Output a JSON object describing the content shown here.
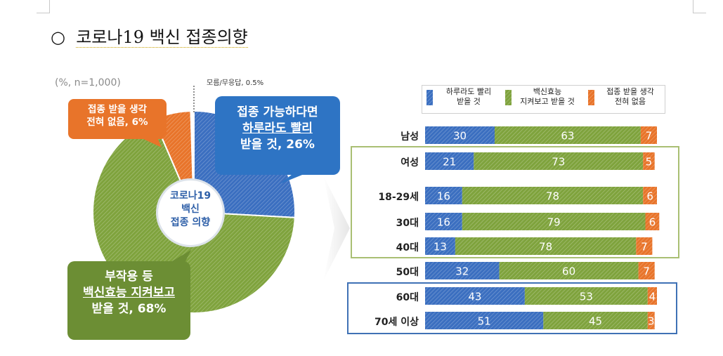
{
  "page": {
    "bullet": "○",
    "title": "코로나19 백신 접종의향"
  },
  "pie": {
    "note": "(%, n=1,000)",
    "center_lines": [
      "코로나19",
      "백신",
      "접종 의향"
    ],
    "small_label": "모름/무응답, 0.5%",
    "callout_blue": [
      "접종 가능하다면",
      "하루라도 빨리",
      "받을 것, 26%"
    ],
    "callout_orange": [
      "접종 받을 생각",
      "전혀 없음, 6%"
    ],
    "callout_green": [
      "부작용 등",
      "백신효능 지켜보고",
      "받을 것, 68%"
    ]
  },
  "chart_data": [
    {
      "type": "pie",
      "categories": [
        "하루라도 빨리 받을 것",
        "백신효능 지켜보고 받을 것",
        "접종 받을 생각 전혀 없음",
        "모름/무응답"
      ],
      "values": [
        26,
        68,
        6,
        0.5
      ],
      "colors": [
        "#3b6fc0",
        "#7fa33d",
        "#e8742a",
        "#cccccc"
      ]
    },
    {
      "type": "bar",
      "stacked": true,
      "orientation": "horizontal",
      "categories": [
        "남성",
        "여성",
        "18-29세",
        "30대",
        "40대",
        "50대",
        "60대",
        "70세 이상"
      ],
      "series": [
        {
          "name": "하루라도 빨리 받을 것",
          "color": "#3b6fc0",
          "values": [
            30,
            21,
            16,
            16,
            13,
            32,
            43,
            51
          ]
        },
        {
          "name": "백신효능 지켜보고 받을 것",
          "color": "#7fa33d",
          "values": [
            63,
            73,
            78,
            79,
            78,
            60,
            53,
            45
          ]
        },
        {
          "name": "접종 받을 생각 전혀 없음",
          "color": "#e8742a",
          "values": [
            7,
            5,
            6,
            6,
            7,
            7,
            4,
            3
          ]
        }
      ],
      "legend": [
        [
          "하루라도 빨리",
          "받을 것"
        ],
        [
          "백신효능",
          "지켜보고 받을 것"
        ],
        [
          "접종 받을 생각",
          "전혀 없음"
        ]
      ],
      "xlim": [
        0,
        100
      ]
    }
  ]
}
